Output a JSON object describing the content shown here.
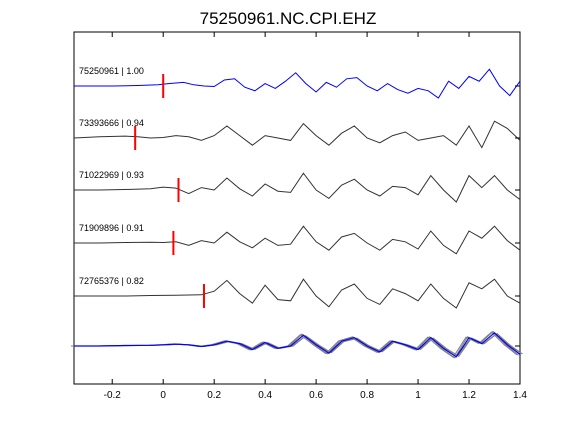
{
  "chart_data": {
    "type": "line",
    "title": "75250961.NC.CPI.EHZ",
    "xlabel": "",
    "ylabel": "",
    "xlim": [
      -0.35,
      1.4
    ],
    "xticks": [
      -0.2,
      0,
      0.2,
      0.4,
      0.6,
      0.8,
      1,
      1.2,
      1.4
    ],
    "xtick_labels": [
      "-0.2",
      "0",
      "0.2",
      "0.4",
      "0.6",
      "0.8",
      "1",
      "1.2",
      "1.4"
    ],
    "grid": false,
    "legend": "none",
    "colors": {
      "master": "#0000ff",
      "trace": "#333333",
      "stack": "#808080",
      "pick": "#ff0000",
      "axis": "#000000"
    },
    "series": [
      {
        "label": "75250961 | 1.00",
        "color": "#0000ff",
        "pick": 0.0,
        "x": [
          -0.35,
          -0.2,
          -0.1,
          -0.02,
          0.02,
          0.08,
          0.12,
          0.16,
          0.2,
          0.24,
          0.28,
          0.32,
          0.36,
          0.4,
          0.44,
          0.48,
          0.52,
          0.56,
          0.6,
          0.64,
          0.68,
          0.72,
          0.76,
          0.8,
          0.84,
          0.88,
          0.92,
          0.96,
          1.0,
          1.04,
          1.08,
          1.12,
          1.16,
          1.2,
          1.24,
          1.28,
          1.32,
          1.36,
          1.4
        ],
        "y": [
          0.0,
          0.0,
          0.02,
          0.05,
          0.1,
          0.15,
          0.05,
          0.0,
          -0.02,
          0.25,
          0.3,
          -0.05,
          -0.2,
          0.1,
          -0.1,
          0.2,
          0.55,
          0.1,
          -0.25,
          0.15,
          -0.05,
          0.3,
          0.35,
          0.0,
          -0.2,
          0.1,
          -0.15,
          -0.3,
          -0.1,
          -0.2,
          -0.5,
          0.2,
          -0.1,
          0.4,
          0.2,
          0.7,
          0.0,
          -0.4,
          0.2
        ]
      },
      {
        "label": "73393666 | 0.94",
        "color": "#333333",
        "pick": -0.11,
        "x": [
          -0.35,
          -0.25,
          -0.15,
          -0.1,
          -0.05,
          0.0,
          0.05,
          0.1,
          0.15,
          0.2,
          0.25,
          0.3,
          0.35,
          0.4,
          0.45,
          0.5,
          0.55,
          0.6,
          0.65,
          0.7,
          0.75,
          0.8,
          0.85,
          0.9,
          0.95,
          1.0,
          1.05,
          1.1,
          1.15,
          1.2,
          1.25,
          1.3,
          1.35,
          1.4
        ],
        "y": [
          0.0,
          0.05,
          0.08,
          0.05,
          0.0,
          0.02,
          0.1,
          0.05,
          -0.1,
          0.1,
          0.5,
          0.1,
          -0.3,
          0.1,
          0.0,
          -0.1,
          0.6,
          0.1,
          -0.3,
          0.2,
          0.5,
          0.0,
          -0.2,
          0.1,
          0.25,
          -0.1,
          0.0,
          0.1,
          -0.3,
          0.5,
          -0.4,
          0.7,
          0.4,
          -0.1
        ]
      },
      {
        "label": "71022969 | 0.93",
        "color": "#333333",
        "pick": 0.06,
        "x": [
          -0.35,
          -0.25,
          -0.15,
          -0.05,
          0.0,
          0.05,
          0.1,
          0.15,
          0.2,
          0.25,
          0.3,
          0.35,
          0.4,
          0.45,
          0.5,
          0.55,
          0.6,
          0.65,
          0.7,
          0.75,
          0.8,
          0.85,
          0.9,
          0.95,
          1.0,
          1.05,
          1.1,
          1.15,
          1.2,
          1.25,
          1.3,
          1.35,
          1.4
        ],
        "y": [
          0.0,
          0.0,
          0.02,
          0.05,
          0.12,
          0.08,
          -0.15,
          0.1,
          0.0,
          0.5,
          0.05,
          -0.25,
          0.25,
          -0.05,
          -0.1,
          0.7,
          0.0,
          -0.35,
          0.2,
          0.45,
          0.0,
          -0.25,
          0.15,
          0.1,
          -0.2,
          0.6,
          0.0,
          -0.5,
          0.6,
          0.1,
          0.6,
          0.0,
          -0.4
        ]
      },
      {
        "label": "71909896 | 0.91",
        "color": "#333333",
        "pick": 0.04,
        "x": [
          -0.35,
          -0.25,
          -0.15,
          -0.05,
          0.0,
          0.05,
          0.1,
          0.15,
          0.2,
          0.25,
          0.3,
          0.35,
          0.4,
          0.45,
          0.5,
          0.55,
          0.6,
          0.65,
          0.7,
          0.75,
          0.8,
          0.85,
          0.9,
          0.95,
          1.0,
          1.05,
          1.1,
          1.15,
          1.2,
          1.25,
          1.3,
          1.35,
          1.4
        ],
        "y": [
          0.0,
          0.0,
          0.02,
          0.03,
          0.02,
          0.05,
          -0.1,
          0.1,
          0.0,
          0.45,
          0.05,
          -0.2,
          0.2,
          -0.1,
          -0.05,
          0.7,
          0.05,
          -0.3,
          0.25,
          0.4,
          0.0,
          -0.3,
          0.15,
          0.05,
          -0.25,
          0.5,
          -0.1,
          -0.45,
          0.5,
          0.2,
          0.7,
          0.1,
          -0.3
        ]
      },
      {
        "label": "72765376 | 0.82",
        "color": "#333333",
        "pick": 0.16,
        "x": [
          -0.35,
          -0.25,
          -0.15,
          -0.05,
          0.05,
          0.15,
          0.2,
          0.25,
          0.3,
          0.35,
          0.4,
          0.45,
          0.5,
          0.55,
          0.6,
          0.65,
          0.7,
          0.75,
          0.8,
          0.85,
          0.9,
          0.95,
          1.0,
          1.05,
          1.1,
          1.15,
          1.2,
          1.25,
          1.3,
          1.35,
          1.4
        ],
        "y": [
          0.0,
          0.0,
          0.0,
          0.02,
          0.03,
          0.05,
          0.2,
          0.65,
          0.1,
          -0.3,
          0.45,
          -0.15,
          -0.2,
          0.7,
          0.0,
          -0.45,
          0.25,
          0.5,
          -0.1,
          -0.35,
          0.3,
          0.1,
          -0.2,
          0.5,
          -0.1,
          -0.5,
          0.55,
          0.3,
          0.7,
          0.0,
          -0.3
        ]
      }
    ],
    "stack": {
      "master_color": "#0000ff",
      "trace_color": "#808080",
      "x": [
        -0.35,
        -0.25,
        -0.15,
        -0.05,
        0.0,
        0.05,
        0.1,
        0.15,
        0.2,
        0.25,
        0.3,
        0.35,
        0.4,
        0.45,
        0.5,
        0.55,
        0.6,
        0.65,
        0.7,
        0.75,
        0.8,
        0.85,
        0.9,
        0.95,
        1.0,
        1.05,
        1.1,
        1.15,
        1.2,
        1.25,
        1.3,
        1.35,
        1.4
      ],
      "y": [
        0.0,
        0.0,
        0.02,
        0.03,
        0.05,
        0.08,
        0.05,
        -0.02,
        0.05,
        0.2,
        0.1,
        -0.15,
        0.15,
        -0.1,
        0.0,
        0.45,
        0.05,
        -0.3,
        0.2,
        0.35,
        0.0,
        -0.25,
        0.2,
        0.05,
        -0.15,
        0.35,
        -0.1,
        -0.45,
        0.35,
        0.1,
        0.55,
        0.05,
        -0.35
      ]
    }
  }
}
